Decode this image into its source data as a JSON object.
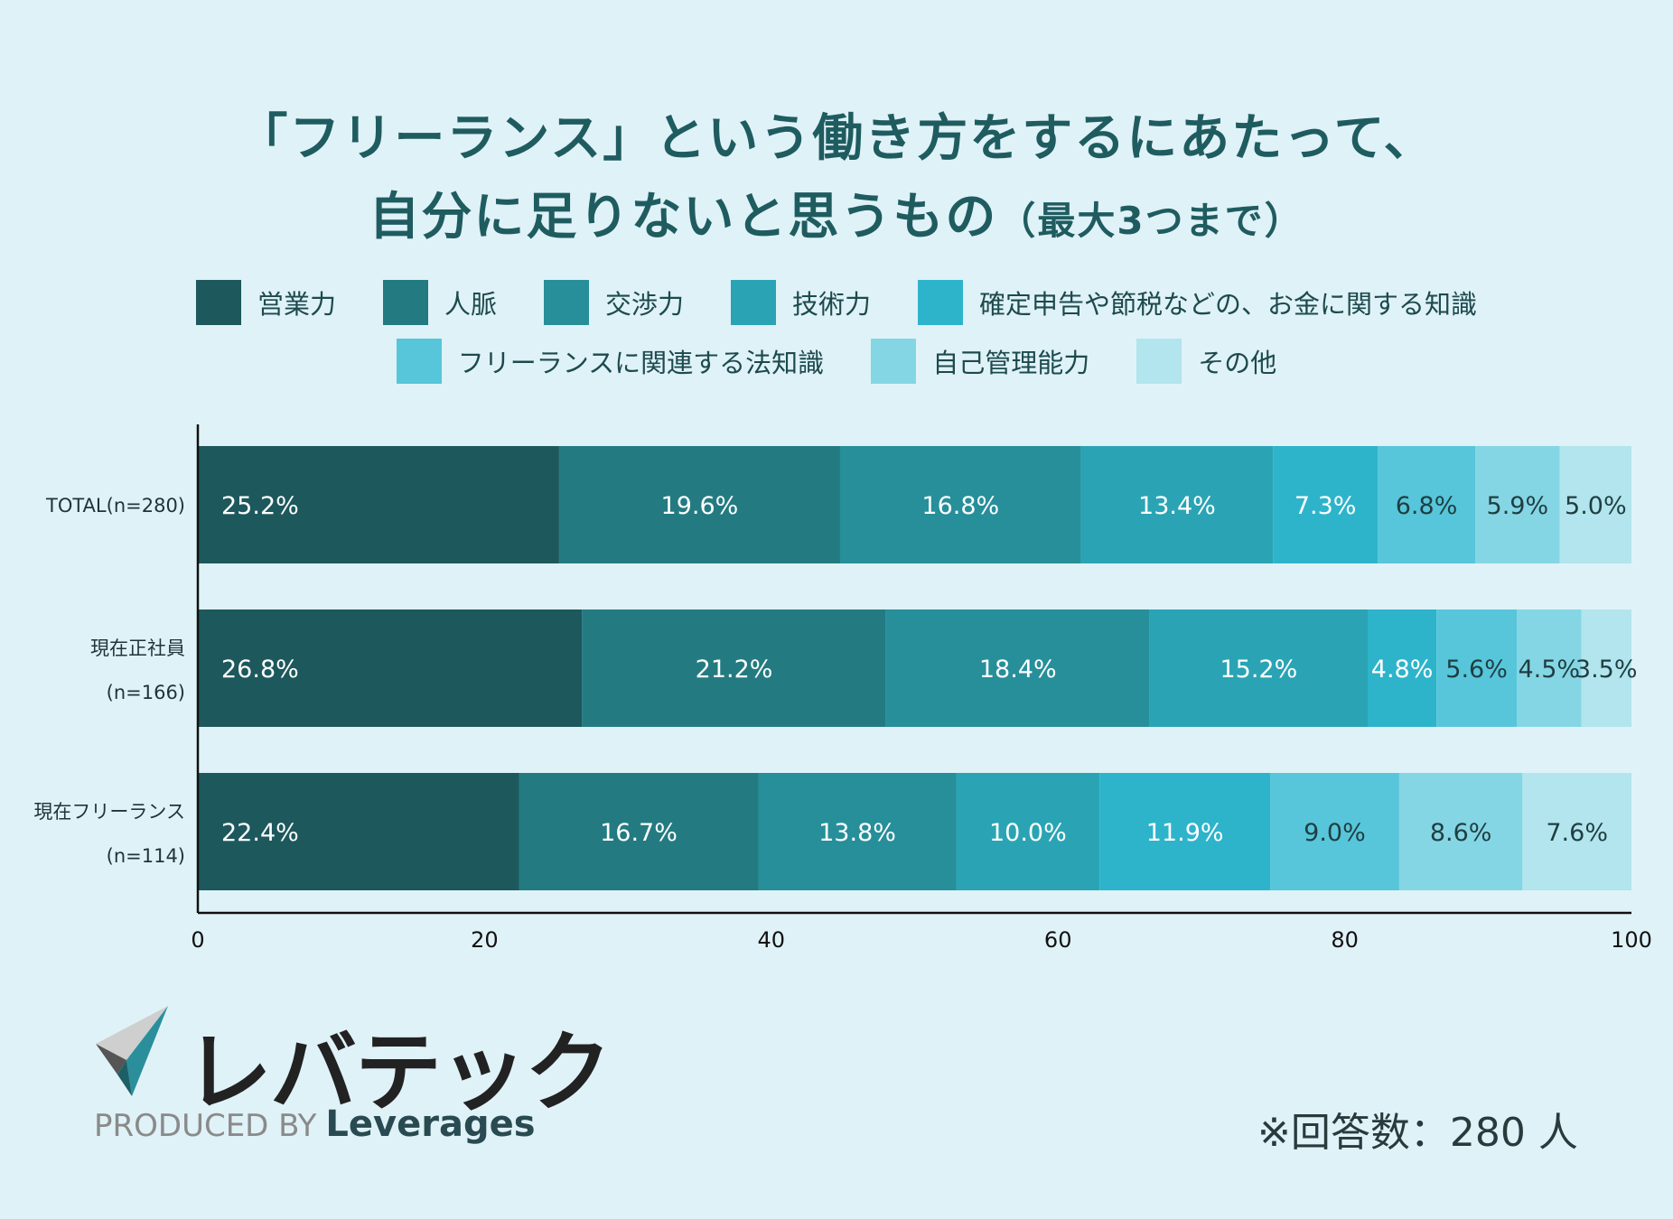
{
  "title": {
    "line1": "「フリーランス」という働き方をするにあたって、",
    "line2_main": "自分に足りないと思うもの",
    "line2_sub": "（最大3つまで）"
  },
  "chart_data": {
    "type": "bar",
    "orientation": "horizontal",
    "stacked": true,
    "xlim": [
      0,
      100
    ],
    "xticks": [
      "0",
      "20",
      "40",
      "60",
      "80",
      "100"
    ],
    "categories": [
      {
        "line1": "TOTAL(n=280)",
        "line2": ""
      },
      {
        "line1": "現在正社員",
        "line2": "(n=166)"
      },
      {
        "line1": "現在フリーランス",
        "line2": "(n=114)"
      }
    ],
    "series": [
      {
        "name": "営業力",
        "color": "#1d585c",
        "values": [
          25.2,
          26.8,
          22.4
        ],
        "labels": [
          "25.2%",
          "26.8%",
          "22.4%"
        ]
      },
      {
        "name": "人脈",
        "color": "#237b81",
        "values": [
          19.6,
          21.2,
          16.7
        ],
        "labels": [
          "19.6%",
          "21.2%",
          "16.7%"
        ]
      },
      {
        "name": "交渉力",
        "color": "#268f9a",
        "values": [
          16.8,
          18.4,
          13.8
        ],
        "labels": [
          "16.8%",
          "18.4%",
          "13.8%"
        ]
      },
      {
        "name": "技術力",
        "color": "#2aa4b4",
        "values": [
          13.4,
          15.2,
          10.0
        ],
        "labels": [
          "13.4%",
          "15.2%",
          "10.0%"
        ]
      },
      {
        "name": "確定申告や節税などの、お金に関する知識",
        "color": "#2db4cb",
        "values": [
          7.3,
          4.8,
          11.9
        ],
        "labels": [
          "7.3%",
          "4.8%",
          "11.9%"
        ]
      },
      {
        "name": "フリーランスに関連する法知識",
        "color": "#57c6da",
        "values": [
          6.8,
          5.6,
          9.0
        ],
        "labels": [
          "6.8%",
          "5.6%",
          "9.0%"
        ]
      },
      {
        "name": "自己管理能力",
        "color": "#85d6e4",
        "values": [
          5.9,
          4.5,
          8.6
        ],
        "labels": [
          "5.9%",
          "4.5%",
          "8.6%"
        ]
      },
      {
        "name": "その他",
        "color": "#b2e5ed",
        "values": [
          5.0,
          3.5,
          7.6
        ],
        "labels": [
          "5.0%",
          "3.5%",
          "7.6%"
        ]
      }
    ]
  },
  "footer": {
    "brand": "レバテック",
    "produced_by": "PRODUCED BY",
    "company": "Leverages",
    "note": "※回答数：280 人"
  }
}
